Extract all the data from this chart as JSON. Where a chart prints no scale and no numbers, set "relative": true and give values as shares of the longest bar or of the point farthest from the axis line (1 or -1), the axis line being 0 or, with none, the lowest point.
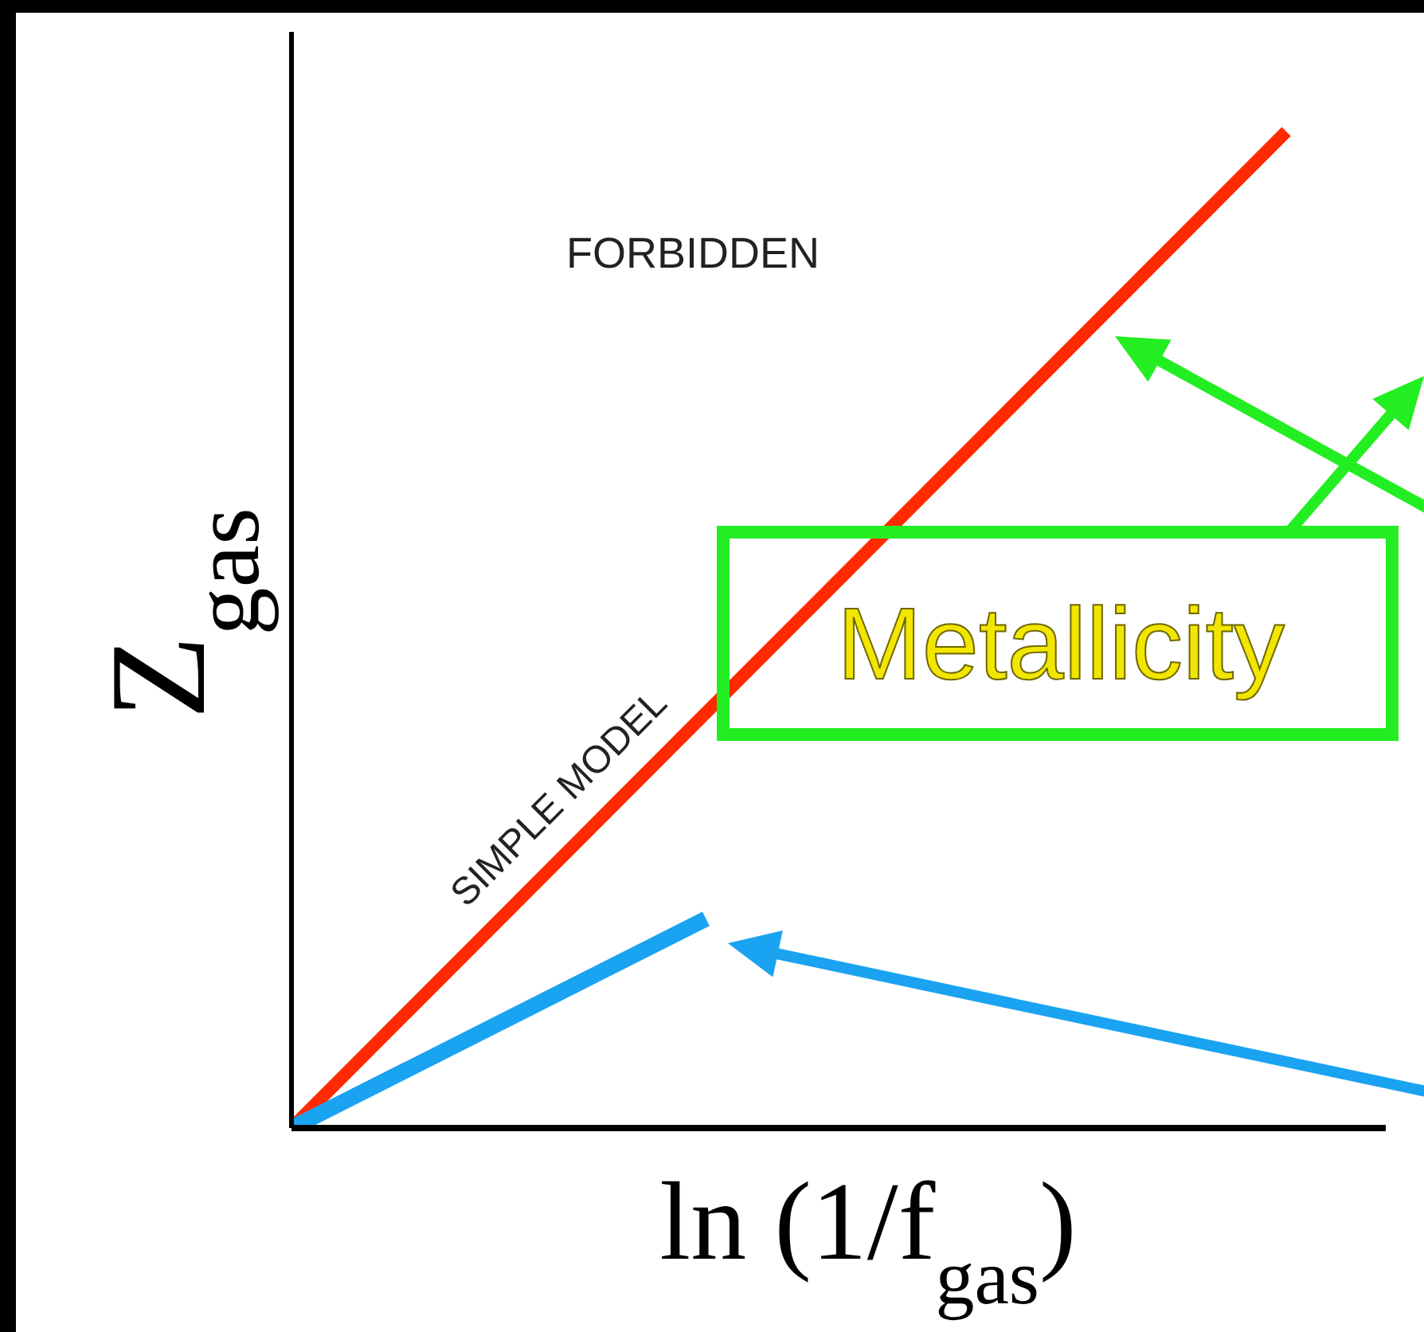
{
  "chart_data": {
    "type": "line",
    "relative": true,
    "xlabel": "ln (1/f$_{gas}$)",
    "ylabel": "Z$_{gas}$",
    "annotations": [
      "FORBIDDEN",
      "Metallicity"
    ],
    "marker": "none",
    "categories": [
      null,
      null,
      null,
      null,
      null,
      null,
      null,
      null,
      null,
      null,
      null,
      null,
      null
    ],
    "series": [
      {
        "name": "SIMPLE MODEL",
        "color": "#ff2a00",
        "values": [
          0,
          null,
          null,
          null,
          null,
          null,
          null,
          null,
          null,
          null,
          null,
          null,
          1
        ]
      },
      {
        "color": "#1aa3f0",
        "values": [
          0,
          null,
          null,
          null,
          null,
          0.21,
          null,
          null,
          null,
          null,
          null,
          null,
          null
        ]
      }
    ]
  }
}
